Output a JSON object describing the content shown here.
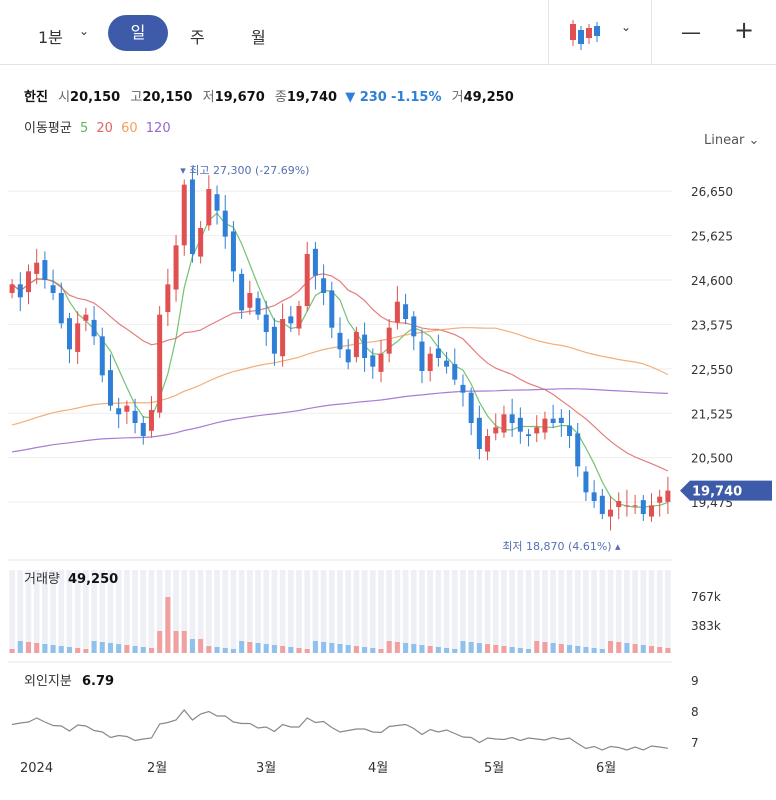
{
  "toolbar": {
    "interval_label": "1분",
    "tabs": [
      "일",
      "주",
      "월"
    ],
    "active_tab": 0,
    "minus_label": "—",
    "plus_label": "+"
  },
  "stock": {
    "name": "한진",
    "open_label": "시",
    "open": "20,150",
    "high_label": "고",
    "high": "20,150",
    "low_label": "저",
    "low": "19,670",
    "close_label": "종",
    "close": "19,740",
    "change": "▼ 230",
    "change_pct": "-1.15%",
    "volume_label": "거",
    "volume": "49,250"
  },
  "moving_average": {
    "label": "이동평균",
    "periods": [
      {
        "period": "5",
        "color": "#5cb85c"
      },
      {
        "period": "20",
        "color": "#e06666"
      },
      {
        "period": "60",
        "color": "#f0a060"
      },
      {
        "period": "120",
        "color": "#9966cc"
      }
    ]
  },
  "scale_mode": "Linear",
  "colors": {
    "up": "#e05050",
    "down": "#2f7fd6",
    "accent": "#3d5ba8"
  },
  "chart_data": [
    {
      "type": "candlestick",
      "y_ticks": [
        "26,650",
        "25,625",
        "24,600",
        "23,575",
        "22,550",
        "21,525",
        "20,500",
        "19,475"
      ],
      "ylim": [
        18600,
        27600
      ],
      "x_tick_labels": [
        "2024",
        "2월",
        "3월",
        "4월",
        "5월",
        "6월"
      ],
      "last_price_label": "19,740",
      "high_annotation": "최고 27,300 (-27.69%)",
      "low_annotation": "최저 18,870 (4.61%)",
      "close_series": [
        24500,
        24200,
        24800,
        25000,
        24600,
        24300,
        23600,
        23000,
        23600,
        23800,
        23300,
        22400,
        21700,
        21500,
        21700,
        21300,
        21000,
        21600,
        23800,
        24500,
        25400,
        26800,
        25200,
        25800,
        26700,
        26200,
        25600,
        24800,
        23900,
        24300,
        23800,
        23400,
        22900,
        23700,
        23600,
        24000,
        25200,
        24700,
        24300,
        23500,
        23000,
        22700,
        23400,
        22800,
        22600,
        22900,
        23500,
        24100,
        23700,
        23300,
        22500,
        22900,
        22800,
        22600,
        22300,
        22000,
        21300,
        20700,
        21000,
        21200,
        21500,
        21300,
        21100,
        21000,
        21200,
        21400,
        21300,
        21300,
        21000,
        20300,
        19700,
        19500,
        19200,
        19300,
        19500,
        19400,
        19400,
        19200,
        19400,
        19600,
        19740
      ]
    },
    {
      "type": "bar",
      "title": "거래량",
      "last_value": "49,250",
      "y_ticks": [
        "767k",
        "383k"
      ]
    },
    {
      "type": "line",
      "title": "외인지분",
      "last_value": "6.79",
      "y_ticks": [
        "9",
        "8",
        "7"
      ]
    }
  ]
}
